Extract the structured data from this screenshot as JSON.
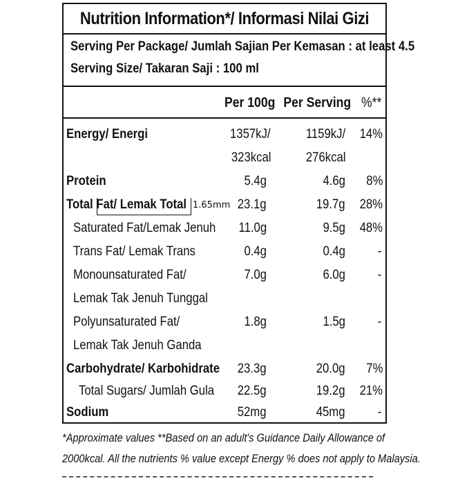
{
  "title": "Nutrition Information*/  Informasi Nilai Gizi",
  "serving": {
    "per_package": "Serving Per Package/ Jumlah Sajian Per Kemasan : at least 4.5",
    "size": "Serving Size/ Takaran Saji : 100 ml"
  },
  "columns": {
    "per100": "Per 100g",
    "per_serving": "Per Serving",
    "percent": "%**"
  },
  "rows": {
    "energy": {
      "label": "Energy/ Energi",
      "per100_kj": "1357kJ/",
      "per100_kcal": "323kcal",
      "serv_kj": "1159kJ/",
      "serv_kcal": "276kcal",
      "pct": "14%"
    },
    "protein": {
      "label": "Protein",
      "per100": "5.4g",
      "serv": "4.6g",
      "pct": "8%"
    },
    "total_fat": {
      "label_a": "Total ",
      "label_b": "Fat/ Lemak Total",
      "per100": "23.1g",
      "serv": "19.7g",
      "pct": "28%"
    },
    "saturated": {
      "label": "Saturated Fat/Lemak Jenuh",
      "per100": "11.0g",
      "serv": "9.5g",
      "pct": "48%"
    },
    "trans": {
      "label": "Trans Fat/ Lemak Trans",
      "per100": "0.4g",
      "serv": "0.4g",
      "pct": "-"
    },
    "mono": {
      "label_1": "Monounsaturated Fat/",
      "label_2": "Lemak Tak Jenuh Tunggal",
      "per100": "7.0g",
      "serv": "6.0g",
      "pct": "-"
    },
    "poly": {
      "label_1": "Polyunsaturated Fat/",
      "label_2": "Lemak Tak Jenuh Ganda",
      "per100": "1.8g",
      "serv": "1.5g",
      "pct": "-"
    },
    "carb": {
      "label": "Carbohydrate/ Karbohidrate",
      "per100": "23.3g",
      "serv": "20.0g",
      "pct": "7%"
    },
    "sugars": {
      "label": "Total Sugars/ Jumlah Gula",
      "per100": "22.5g",
      "serv": "19.2g",
      "pct": "21%"
    },
    "sodium": {
      "label": "Sodium",
      "per100": "52mg",
      "serv": "45mg",
      "pct": "-"
    }
  },
  "annotation": "1.65mm",
  "footer": {
    "line1": "*Approximate values  **Based on an adult's  Guidance Daily Allowance of",
    "line2": "2000kcal. All the nutrients % value except Energy % does not apply to Malaysia."
  }
}
